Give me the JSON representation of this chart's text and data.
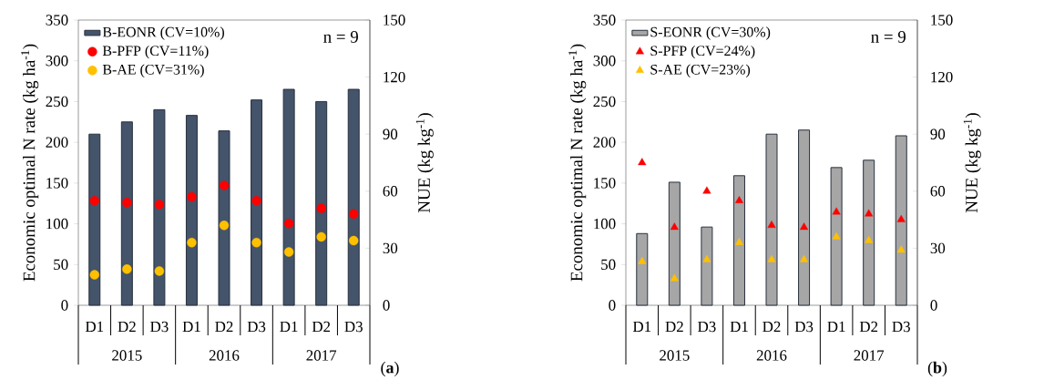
{
  "chart_data": [
    {
      "type": "bar",
      "title": "(**a**)",
      "ylabel": "Economic optimal N rate (kg ha$^{-1}$)",
      "y2label": "NUE (kg kg$^{-1}$)",
      "categories": [
        "D1",
        "D2",
        "D3",
        "D1",
        "D2",
        "D3",
        "D1",
        "D2",
        "D3"
      ],
      "series": [
        {
          "name": "B-EONR (CV=10%)",
          "type": "bar",
          "color": "#44546a",
          "values": [
            210,
            225,
            240,
            233,
            214,
            252,
            265,
            250,
            265
          ]
        },
        {
          "name": "B-PFP (CV=11%)",
          "type": "scatter",
          "axis": "y2",
          "marker": "circle",
          "color": "#ff0000",
          "values": [
            55,
            54,
            53,
            57,
            63,
            55,
            43,
            51,
            48
          ]
        },
        {
          "name": "B-AE (CV=31%)",
          "type": "scatter",
          "axis": "y2",
          "marker": "circle",
          "color": "#ffc000",
          "values": [
            16,
            19,
            18,
            33,
            42,
            33,
            28,
            36,
            34
          ]
        }
      ],
      "ylim": [
        0,
        350
      ],
      "yticks": [
        0,
        50,
        100,
        150,
        200,
        250,
        300,
        350
      ],
      "y2lim": [
        0,
        150
      ],
      "y2ticks": [
        0,
        30,
        60,
        90,
        120,
        150
      ],
      "legend": "top left",
      "annotations": [
        "n = 9",
        "2015",
        "2016",
        "2017"
      ]
    },
    {
      "type": "bar",
      "title": "(**b**)",
      "ylabel": "Economic optimal N rate (kg ha$^{-1}$)",
      "y2label": "NUE (kg kg$^{-1}$)",
      "categories": [
        "D1",
        "D2",
        "D3",
        "D1",
        "D2",
        "D3",
        "D1",
        "D2",
        "D3"
      ],
      "series": [
        {
          "name": "S-EONR (CV=30%)",
          "type": "bar",
          "color": "#a6a6a6",
          "values": [
            88,
            151,
            96,
            159,
            210,
            215,
            169,
            178,
            208
          ]
        },
        {
          "name": "S-PFP (CV=24%)",
          "type": "scatter",
          "axis": "y2",
          "marker": "triangle",
          "color": "#ff0000",
          "values": [
            75,
            41,
            60,
            55,
            42,
            41,
            49,
            48,
            45
          ]
        },
        {
          "name": "S-AE (CV=23%)",
          "type": "scatter",
          "axis": "y2",
          "marker": "triangle",
          "color": "#ffc000",
          "values": [
            23,
            14,
            24,
            33,
            24,
            24,
            36,
            34,
            29
          ]
        }
      ],
      "ylim": [
        0,
        350
      ],
      "yticks": [
        0,
        50,
        100,
        150,
        200,
        250,
        300,
        350
      ],
      "y2lim": [
        0,
        150
      ],
      "y2ticks": [
        0,
        30,
        60,
        90,
        120,
        150
      ],
      "legend": "top left",
      "annotations": [
        "n = 9",
        "2015",
        "2016",
        "2017"
      ]
    }
  ]
}
